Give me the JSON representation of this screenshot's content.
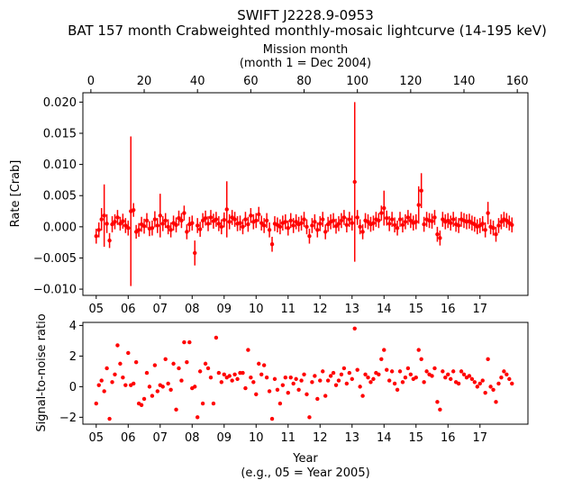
{
  "title_line1": "SWIFT J2228.9-0953",
  "title_line2": "BAT 157 month Crabweighted monthly-mosaic lightcurve (14-195 keV)",
  "top_axis": {
    "label_line1": "Mission month",
    "label_line2": "(month 1 = Dec 2004)",
    "ticks": [
      "0",
      "20",
      "40",
      "60",
      "80",
      "100",
      "120",
      "140",
      "160"
    ],
    "tick_values": [
      0,
      20,
      40,
      60,
      80,
      100,
      120,
      140,
      160
    ]
  },
  "bottom_axis": {
    "label_line1": "Year",
    "label_line2": "(e.g., 05 = Year 2005)",
    "ticks": [
      "05",
      "06",
      "07",
      "08",
      "09",
      "10",
      "11",
      "12",
      "13",
      "14",
      "15",
      "16",
      "17"
    ]
  },
  "chart_data": [
    {
      "type": "scatter",
      "ylabel": "Rate [Crab]",
      "xlim": [
        -3,
        164
      ],
      "ylim": [
        -0.011,
        0.0215
      ],
      "y_ticks": [
        "−0.010",
        "−0.005",
        "0.000",
        "0.005",
        "0.010",
        "0.015",
        "0.020"
      ],
      "y_tick_values": [
        -0.01,
        -0.005,
        0.0,
        0.005,
        0.01,
        0.015,
        0.02
      ],
      "color": "#ff0000",
      "x": [
        2,
        3,
        4,
        5,
        6,
        7,
        8,
        9,
        10,
        11,
        12,
        13,
        14,
        15,
        16,
        17,
        18,
        19,
        20,
        21,
        22,
        23,
        24,
        25,
        26,
        27,
        28,
        29,
        30,
        31,
        32,
        33,
        34,
        35,
        36,
        37,
        38,
        39,
        40,
        41,
        42,
        43,
        44,
        45,
        46,
        47,
        48,
        49,
        50,
        51,
        52,
        53,
        54,
        55,
        56,
        57,
        58,
        59,
        60,
        61,
        62,
        63,
        64,
        65,
        66,
        67,
        68,
        69,
        70,
        71,
        72,
        73,
        74,
        75,
        76,
        77,
        78,
        79,
        80,
        81,
        82,
        83,
        84,
        85,
        86,
        87,
        88,
        89,
        90,
        91,
        92,
        93,
        94,
        95,
        96,
        97,
        98,
        99,
        100,
        101,
        102,
        103,
        104,
        105,
        106,
        107,
        108,
        109,
        110,
        111,
        112,
        113,
        114,
        115,
        116,
        117,
        118,
        119,
        120,
        121,
        122,
        123,
        124,
        125,
        126,
        127,
        128,
        129,
        130,
        131,
        132,
        133,
        134,
        135,
        136,
        137,
        138,
        139,
        140,
        141,
        142,
        143,
        144,
        145,
        146,
        147,
        148,
        149,
        150,
        151,
        152,
        153,
        154,
        155,
        156,
        157,
        158
      ],
      "y": [
        -0.0015,
        -0.0005,
        0.0012,
        0.0018,
        0.0005,
        -0.0022,
        0.0004,
        0.0008,
        0.0015,
        0.0005,
        0.0009,
        0.0002,
        -0.0002,
        0.0025,
        0.0027,
        -0.0008,
        -0.0005,
        0.0004,
        0.0001,
        0.001,
        -0.0003,
        -0.0002,
        0.0012,
        0.0002,
        0.0018,
        0.0005,
        0.001,
        0.0,
        -0.0005,
        0.0006,
        0.0003,
        0.0014,
        0.001,
        0.0022,
        -0.0008,
        0.0004,
        0.0006,
        -0.0042,
        0.0002,
        -0.0004,
        0.001,
        0.0014,
        0.0005,
        0.0015,
        0.0009,
        0.0012,
        0.0005,
        0.0,
        0.0011,
        0.0028,
        0.0008,
        0.0015,
        0.0012,
        0.0005,
        0.0006,
        0.0,
        0.0012,
        0.0004,
        0.0018,
        0.0008,
        0.001,
        0.002,
        0.0006,
        0.0002,
        0.001,
        -0.0005,
        -0.0028,
        0.0005,
        0.0003,
        0.0,
        0.0006,
        0.0008,
        -0.0002,
        0.001,
        0.0002,
        0.0008,
        0.0004,
        0.0006,
        0.0012,
        0.0,
        -0.0015,
        0.0002,
        0.0008,
        -0.0005,
        0.0005,
        0.0012,
        -0.0008,
        0.0004,
        0.0008,
        0.001,
        0.0001,
        0.0005,
        0.001,
        0.0015,
        0.0003,
        0.0012,
        0.0006,
        0.0072,
        0.0015,
        0.0,
        -0.0008,
        0.001,
        0.0008,
        0.0004,
        0.0006,
        0.0012,
        0.001,
        0.0022,
        0.003,
        0.0014,
        0.0005,
        0.0012,
        0.0003,
        -0.0002,
        0.0012,
        0.0003,
        0.0008,
        0.0015,
        0.001,
        0.0006,
        0.0008,
        0.0035,
        0.0058,
        0.0004,
        0.0012,
        0.001,
        0.0009,
        0.0015,
        -0.0012,
        -0.0018,
        0.0012,
        0.0008,
        0.001,
        0.0006,
        0.0012,
        0.0004,
        0.0002,
        0.0012,
        0.001,
        0.0008,
        0.0009,
        0.0006,
        0.0004,
        0.0,
        0.0002,
        0.0005,
        -0.0005,
        0.0022,
        0.0,
        -0.0002,
        -0.0012,
        0.0002,
        0.0008,
        0.0012,
        0.001,
        0.0006,
        0.0003
      ],
      "yerr": [
        0.0012,
        0.0012,
        0.0018,
        0.005,
        0.0015,
        0.0012,
        0.0013,
        0.0012,
        0.0012,
        0.0011,
        0.0012,
        0.0012,
        0.0012,
        0.012,
        0.0011,
        0.0011,
        0.0011,
        0.0012,
        0.0012,
        0.0012,
        0.0012,
        0.0012,
        0.0013,
        0.0012,
        0.0035,
        0.0012,
        0.0012,
        0.0012,
        0.0012,
        0.0012,
        0.0012,
        0.0012,
        0.0012,
        0.0012,
        0.0012,
        0.0012,
        0.0012,
        0.002,
        0.0012,
        0.0012,
        0.0012,
        0.0012,
        0.0012,
        0.0012,
        0.0012,
        0.0012,
        0.0012,
        0.0012,
        0.0012,
        0.0045,
        0.0012,
        0.0012,
        0.0012,
        0.0012,
        0.0012,
        0.0012,
        0.0012,
        0.0012,
        0.0012,
        0.0012,
        0.0012,
        0.0012,
        0.0012,
        0.0012,
        0.0012,
        0.0012,
        0.0012,
        0.0012,
        0.0012,
        0.0012,
        0.0012,
        0.0012,
        0.0012,
        0.0012,
        0.0012,
        0.0012,
        0.0012,
        0.0012,
        0.0012,
        0.0012,
        0.0012,
        0.0012,
        0.0012,
        0.0012,
        0.0012,
        0.0012,
        0.0012,
        0.0012,
        0.0012,
        0.0012,
        0.0012,
        0.0012,
        0.0012,
        0.0012,
        0.0012,
        0.0012,
        0.0012,
        0.0128,
        0.0012,
        0.0012,
        0.0012,
        0.0012,
        0.0012,
        0.0012,
        0.0012,
        0.0012,
        0.0012,
        0.0012,
        0.0028,
        0.0012,
        0.0012,
        0.0012,
        0.0012,
        0.0012,
        0.0012,
        0.0012,
        0.0012,
        0.0012,
        0.0012,
        0.0012,
        0.0012,
        0.003,
        0.0028,
        0.0012,
        0.0012,
        0.0012,
        0.0012,
        0.0012,
        0.0012,
        0.0012,
        0.0012,
        0.0012,
        0.0012,
        0.0012,
        0.0012,
        0.0012,
        0.0012,
        0.0012,
        0.0012,
        0.0012,
        0.0012,
        0.0012,
        0.0012,
        0.0012,
        0.0012,
        0.0012,
        0.0012,
        0.0018,
        0.0012,
        0.0012,
        0.0012,
        0.0012,
        0.0012,
        0.0012,
        0.0012,
        0.0012,
        0.0012
      ]
    },
    {
      "type": "scatter",
      "ylabel": "Signal-to-noise ratio",
      "xlim": [
        -3,
        164
      ],
      "ylim": [
        -2.45,
        4.2
      ],
      "y_ticks": [
        "−2",
        "0",
        "2",
        "4"
      ],
      "y_tick_values": [
        -2,
        0,
        2,
        4
      ],
      "color": "#ff0000",
      "x": [
        2,
        3,
        4,
        5,
        6,
        7,
        8,
        9,
        10,
        11,
        12,
        13,
        14,
        15,
        16,
        17,
        18,
        19,
        20,
        21,
        22,
        23,
        24,
        25,
        26,
        27,
        28,
        29,
        30,
        31,
        32,
        33,
        34,
        35,
        36,
        37,
        38,
        39,
        40,
        41,
        42,
        43,
        44,
        45,
        46,
        47,
        48,
        49,
        50,
        51,
        52,
        53,
        54,
        55,
        56,
        57,
        58,
        59,
        60,
        61,
        62,
        63,
        64,
        65,
        66,
        67,
        68,
        69,
        70,
        71,
        72,
        73,
        74,
        75,
        76,
        77,
        78,
        79,
        80,
        81,
        82,
        83,
        84,
        85,
        86,
        87,
        88,
        89,
        90,
        91,
        92,
        93,
        94,
        95,
        96,
        97,
        98,
        99,
        100,
        101,
        102,
        103,
        104,
        105,
        106,
        107,
        108,
        109,
        110,
        111,
        112,
        113,
        114,
        115,
        116,
        117,
        118,
        119,
        120,
        121,
        122,
        123,
        124,
        125,
        126,
        127,
        128,
        129,
        130,
        131,
        132,
        133,
        134,
        135,
        136,
        137,
        138,
        139,
        140,
        141,
        142,
        143,
        144,
        145,
        146,
        147,
        148,
        149,
        150,
        151,
        152,
        153,
        154,
        155,
        156,
        157,
        158
      ],
      "y": [
        -1.1,
        0.1,
        0.4,
        -0.3,
        1.2,
        -2.1,
        0.3,
        0.8,
        2.7,
        1.5,
        0.6,
        0.1,
        2.2,
        0.1,
        0.2,
        1.6,
        -1.1,
        -1.2,
        -0.8,
        0.9,
        0.0,
        -0.6,
        1.4,
        -0.3,
        0.1,
        0.0,
        1.8,
        0.2,
        -0.2,
        1.5,
        -1.5,
        1.2,
        0.4,
        2.9,
        1.6,
        2.9,
        -0.1,
        0.0,
        -2.0,
        1.0,
        -1.1,
        1.5,
        1.2,
        0.6,
        -1.1,
        3.2,
        0.9,
        0.3,
        0.8,
        0.6,
        0.7,
        0.4,
        0.8,
        0.5,
        0.9,
        0.9,
        -0.1,
        2.4,
        0.6,
        0.3,
        -0.5,
        1.5,
        0.8,
        1.4,
        0.6,
        -0.3,
        -2.1,
        0.5,
        -0.2,
        -1.1,
        0.1,
        0.6,
        -0.4,
        0.6,
        0.2,
        0.5,
        -0.2,
        0.4,
        0.8,
        -0.5,
        -2.0,
        0.3,
        0.7,
        -0.8,
        0.4,
        1.0,
        -0.6,
        0.4,
        0.7,
        0.9,
        0.1,
        0.4,
        0.8,
        1.2,
        0.2,
        0.9,
        0.5,
        3.8,
        1.1,
        0.0,
        -0.6,
        0.8,
        0.6,
        0.3,
        0.5,
        0.9,
        0.8,
        1.8,
        2.4,
        1.1,
        0.4,
        1.0,
        0.2,
        -0.2,
        1.0,
        0.3,
        0.6,
        1.2,
        0.8,
        0.5,
        0.6,
        2.4,
        1.8,
        0.3,
        1.0,
        0.8,
        0.7,
        1.2,
        -1.0,
        -1.5,
        1.0,
        0.6,
        0.8,
        0.5,
        1.0,
        0.3,
        0.2,
        1.0,
        0.8,
        0.6,
        0.7,
        0.5,
        0.3,
        0.0,
        0.2,
        0.4,
        -0.4,
        1.8,
        0.0,
        -0.2,
        -1.0,
        0.2,
        0.6,
        1.0,
        0.8,
        0.5,
        0.2
      ]
    }
  ]
}
